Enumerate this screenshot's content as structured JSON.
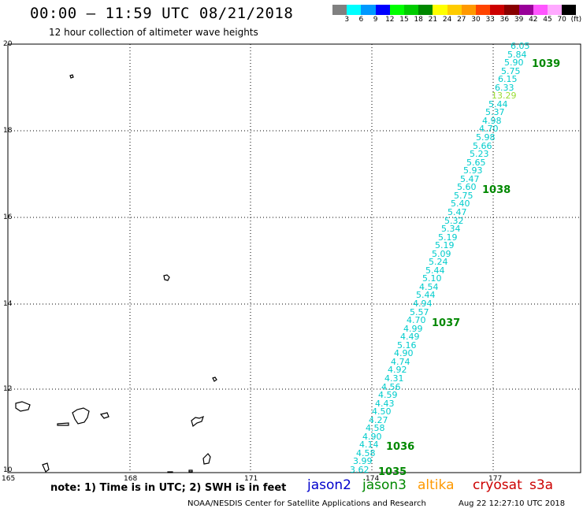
{
  "header": {
    "title": "00:00 – 11:59 UTC 08/21/2018",
    "subtitle": "12 hour collection of altimeter wave heights"
  },
  "legend": {
    "labels": [
      "3",
      "6",
      "9",
      "12",
      "15",
      "18",
      "21",
      "24",
      "27",
      "30",
      "33",
      "36",
      "39",
      "42",
      "45",
      "70",
      "(ft)"
    ],
    "colors": [
      "#808080",
      "#00ffff",
      "#0099ff",
      "#0000ff",
      "#00ff00",
      "#00cc00",
      "#008800",
      "#ffff00",
      "#ffcc00",
      "#ff9900",
      "#ff4400",
      "#cc0000",
      "#880000",
      "#990099",
      "#ff55ff",
      "#ffaaff",
      "#000000"
    ]
  },
  "map": {
    "lat_labels": [
      "20",
      "18",
      "16",
      "14",
      "12",
      "10"
    ],
    "lon_labels": [
      "165",
      "168",
      "171",
      "174",
      "177"
    ],
    "track_color": "#00cccc",
    "highlight_color": "#99dd33",
    "pass_color": "#008800",
    "swh_values": [
      "6.05",
      "5.84",
      "5.90",
      "5.75",
      "6.15",
      "6.33",
      "13.29",
      "5.44",
      "5.37",
      "4.98",
      "4.70",
      "5.98",
      "5.66",
      "5.23",
      "5.65",
      "5.93",
      "5.47",
      "5.60",
      "5.75",
      "5.40",
      "5.47",
      "5.32",
      "5.34",
      "5.19",
      "5.19",
      "5.09",
      "5.24",
      "5.44",
      "5.10",
      "4.54",
      "5.44",
      "4.94",
      "5.57",
      "4.70",
      "4.99",
      "4.49",
      "5.16",
      "4.90",
      "4.74",
      "4.92",
      "4.31",
      "4.56",
      "4.59",
      "4.43",
      "4.50",
      "4.27",
      "4.58",
      "4.90",
      "4.14",
      "4.58",
      "3.99",
      "3.62"
    ],
    "highlight_index": 6,
    "pass_labels": [
      {
        "text": "1039"
      },
      {
        "text": "1038"
      },
      {
        "text": "1037"
      },
      {
        "text": "1036"
      },
      {
        "text": "1035"
      }
    ]
  },
  "footer": {
    "note": "note: 1) Time is in UTC; 2) SWH is in feet",
    "satellites": [
      {
        "name": "jason2",
        "color": "#0000cc"
      },
      {
        "name": "jason3",
        "color": "#008800"
      },
      {
        "name": "altika",
        "color": "#ff9900"
      },
      {
        "name": "cryosat",
        "color": "#cc0000"
      },
      {
        "name": "s3a",
        "color": "#cc0000"
      }
    ],
    "credit": "NOAA/NESDIS Center for Satellite Applications and Research",
    "timestamp": "Aug 22 12:27:10 UTC 2018"
  }
}
